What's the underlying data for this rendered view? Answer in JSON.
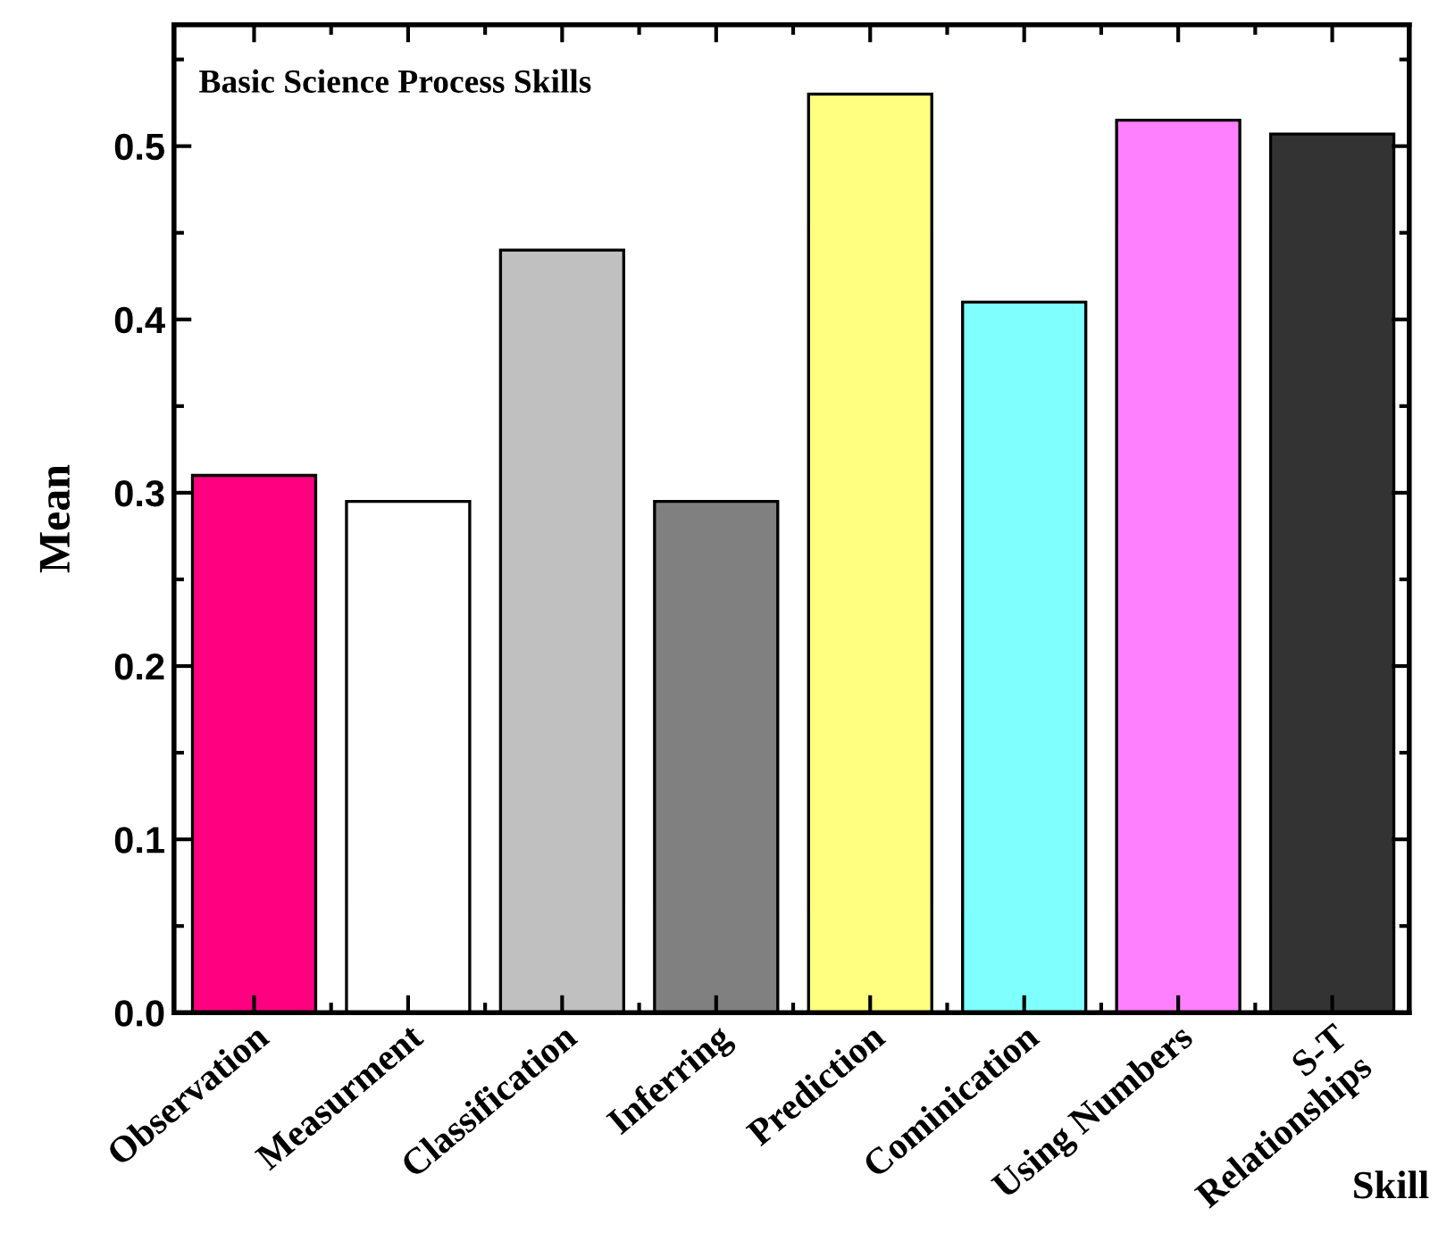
{
  "chart_data": {
    "type": "bar",
    "title": "Basic Science Process Skills",
    "xlabel": "Skill",
    "ylabel": "Mean",
    "categories": [
      "Observation",
      "Measurment",
      "Classification",
      "Inferring",
      "Prediction",
      "Cominication",
      "Using Numbers",
      "S-T\nRelationships"
    ],
    "values": [
      0.31,
      0.295,
      0.44,
      0.295,
      0.53,
      0.41,
      0.515,
      0.507
    ],
    "colors": [
      "#ff0080",
      "#ffffff",
      "#c0c0c0",
      "#808080",
      "#ffff80",
      "#80ffff",
      "#ff80ff",
      "#333333"
    ],
    "ylim": [
      0,
      0.57
    ],
    "yticks": [
      {
        "value": 0,
        "label": "0.0"
      },
      0.1,
      0.2,
      0.3,
      0.4,
      0.5
    ]
  }
}
